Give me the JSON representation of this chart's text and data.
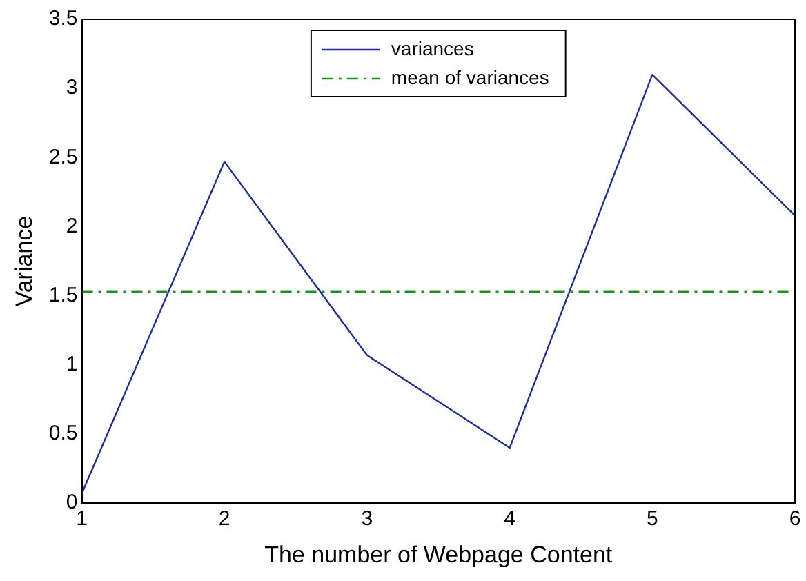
{
  "chart_data": {
    "type": "line",
    "xlabel": "The number of Webpage Content",
    "ylabel": "Variance",
    "x": [
      1,
      2,
      3,
      4,
      5,
      6
    ],
    "series": [
      {
        "name": "variances",
        "color": "#1f2f9a",
        "values": [
          0.07,
          2.47,
          1.07,
          0.4,
          3.1,
          2.08
        ],
        "line_style": "solid"
      },
      {
        "name": "mean of variances",
        "color": "#119911",
        "values": [
          1.53,
          1.53,
          1.53,
          1.53,
          1.53,
          1.53
        ],
        "line_style": "dashed"
      }
    ],
    "xlim": [
      1,
      6
    ],
    "xticks": [
      1,
      2,
      3,
      4,
      5,
      6
    ],
    "ylim": [
      0,
      3.5
    ],
    "yticks": [
      0,
      0.5,
      1,
      1.5,
      2,
      2.5,
      3,
      3.5
    ],
    "grid": false,
    "legend": "top",
    "marker": "none"
  }
}
